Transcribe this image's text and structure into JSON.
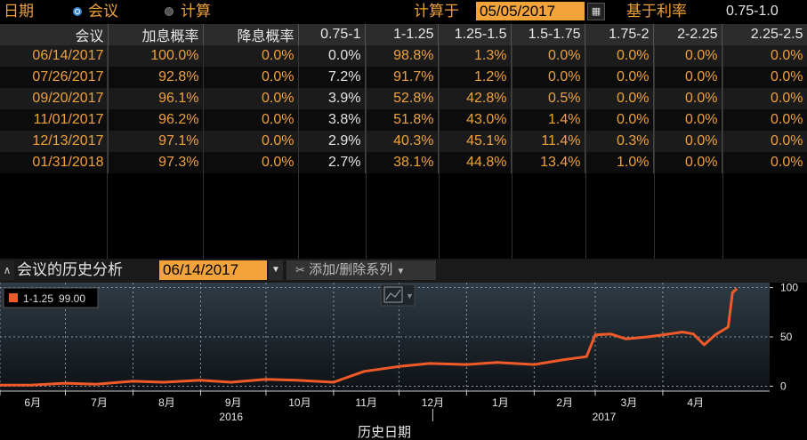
{
  "topbar": {
    "label_date": "日期",
    "option_meeting": "会议",
    "option_calc": "计算",
    "calc_on_label": "计算于",
    "calc_date": "05/05/2017",
    "basis_label": "基于利率",
    "basis_value": "0.75-1.0"
  },
  "table": {
    "headers": [
      "会议",
      "加息概率",
      "降息概率",
      "0.75-1",
      "1-1.25",
      "1.25-1.5",
      "1.5-1.75",
      "1.75-2",
      "2-2.25",
      "2.25-2.5"
    ],
    "rows": [
      [
        "06/14/2017",
        "100.0%",
        "0.0%",
        "0.0%",
        "98.8%",
        "1.3%",
        "0.0%",
        "0.0%",
        "0.0%",
        "0.0%"
      ],
      [
        "07/26/2017",
        "92.8%",
        "0.0%",
        "7.2%",
        "91.7%",
        "1.2%",
        "0.0%",
        "0.0%",
        "0.0%",
        "0.0%"
      ],
      [
        "09/20/2017",
        "96.1%",
        "0.0%",
        "3.9%",
        "52.8%",
        "42.8%",
        "0.5%",
        "0.0%",
        "0.0%",
        "0.0%"
      ],
      [
        "11/01/2017",
        "96.2%",
        "0.0%",
        "3.8%",
        "51.8%",
        "43.0%",
        "1.4%",
        "0.0%",
        "0.0%",
        "0.0%"
      ],
      [
        "12/13/2017",
        "97.1%",
        "0.0%",
        "2.9%",
        "40.3%",
        "45.1%",
        "11.4%",
        "0.3%",
        "0.0%",
        "0.0%"
      ],
      [
        "01/31/2018",
        "97.3%",
        "0.0%",
        "2.7%",
        "38.1%",
        "44.8%",
        "13.4%",
        "1.0%",
        "0.0%",
        "0.0%"
      ]
    ]
  },
  "history": {
    "title": "会议的历史分析",
    "meeting_date": "06/14/2017",
    "series_button": "添加/删除系列"
  },
  "chart_data": {
    "type": "line",
    "series": [
      {
        "name": "1-1.25",
        "color": "#f05a28",
        "x": [
          "2016-06-01",
          "2016-06-15",
          "2016-07-01",
          "2016-07-15",
          "2016-08-01",
          "2016-08-15",
          "2016-09-01",
          "2016-09-15",
          "2016-10-01",
          "2016-10-15",
          "2016-11-01",
          "2016-11-15",
          "2016-12-01",
          "2016-12-15",
          "2017-01-01",
          "2017-01-15",
          "2017-02-01",
          "2017-02-15",
          "2017-02-25",
          "2017-03-01",
          "2017-03-08",
          "2017-03-15",
          "2017-03-25",
          "2017-04-01",
          "2017-04-10",
          "2017-04-15",
          "2017-04-20",
          "2017-04-25",
          "2017-05-01",
          "2017-05-03",
          "2017-05-05"
        ],
        "values": [
          1,
          1,
          3,
          2,
          5,
          4,
          6,
          4,
          7,
          6,
          4,
          15,
          20,
          23,
          22,
          24,
          22,
          27,
          30,
          52,
          53,
          48,
          50,
          52,
          55,
          53,
          42,
          52,
          60,
          95,
          99
        ]
      }
    ],
    "legend": [
      {
        "label": "1-1.25",
        "value": "99.00"
      }
    ],
    "x_ticks": [
      "6月",
      "7月",
      "8月",
      "9月",
      "10月",
      "11月",
      "12月",
      "1月",
      "2月",
      "3月",
      "4月"
    ],
    "x_years": [
      "2016",
      "2017"
    ],
    "xlabel": "历史日期",
    "ylim": [
      -5,
      105
    ],
    "y_ticks": [
      0,
      50,
      100
    ],
    "grid": true,
    "legend_position": "top-left"
  }
}
